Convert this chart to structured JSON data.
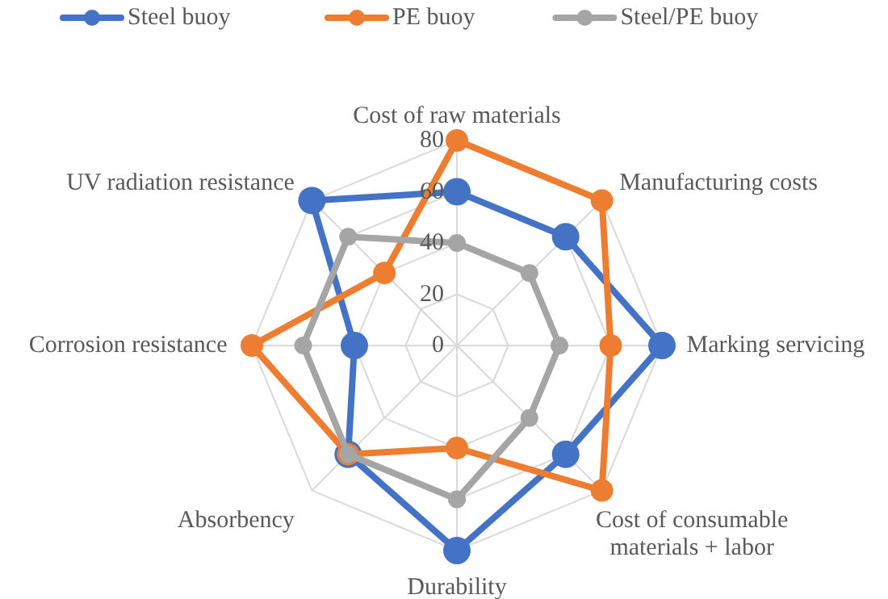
{
  "chart_data": {
    "type": "radar",
    "categories": [
      "Cost of raw materials",
      "Manufacturing costs",
      "Marking servicing",
      "Cost of consumable materials + labor",
      "Durability",
      "Absorbency",
      "Corrosion resistance",
      "UV radiation resistance"
    ],
    "series": [
      {
        "name": "Steel buoy",
        "color": "#4472c4",
        "values": [
          60,
          60,
          80,
          60,
          80,
          60,
          40,
          80
        ]
      },
      {
        "name": "PE buoy",
        "color": "#ed7d31",
        "values": [
          80,
          80,
          60,
          80,
          40,
          60,
          80,
          40
        ]
      },
      {
        "name": "Steel/PE buoy",
        "color": "#a5a5a5",
        "values": [
          40,
          40,
          40,
          40,
          60,
          60,
          60,
          60
        ]
      }
    ],
    "ylim": [
      0,
      80
    ],
    "yticks": [
      0,
      20,
      40,
      60,
      80
    ],
    "grid": true,
    "legend": "top",
    "marker": "circle",
    "line_style": "solid"
  }
}
